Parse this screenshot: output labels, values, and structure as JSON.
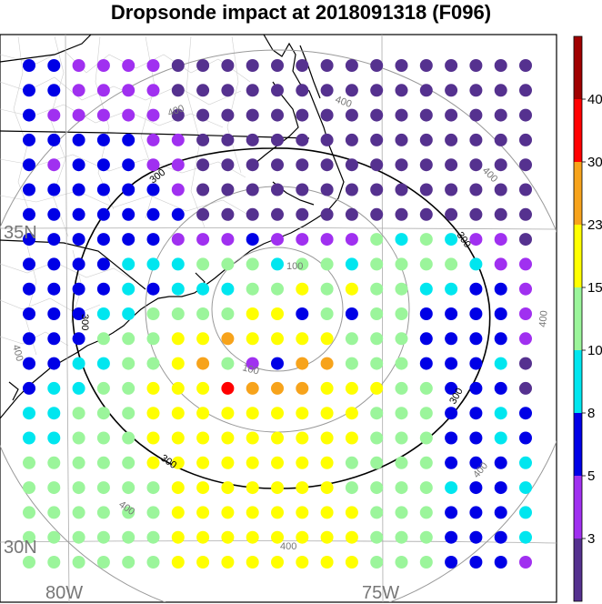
{
  "title": "Dropsonde impact at 2018091318 (F096)",
  "axes": {
    "lon_labels": [
      {
        "text": "80W",
        "lon": -80
      },
      {
        "text": "75W",
        "lon": -75
      }
    ],
    "lat_labels": [
      {
        "text": "35N",
        "lat": 35
      },
      {
        "text": "30N",
        "lat": 30
      }
    ]
  },
  "colorbar": {
    "colors": [
      "#55318f",
      "#a030f0",
      "#0000e6",
      "#00e6ef",
      "#9bf59b",
      "#ffff00",
      "#f7a31b",
      "#ff0000",
      "#a00000"
    ],
    "labels": [
      "3",
      "5",
      "8",
      "10",
      "15",
      "23",
      "30",
      "40"
    ]
  },
  "range_rings": {
    "black": {
      "value": "300",
      "labels": [
        "300",
        "300",
        "300",
        "300"
      ]
    },
    "gray": [
      {
        "value": "100",
        "labels": [
          "100",
          "100"
        ]
      },
      {
        "value": "400",
        "labels": [
          "400",
          "400",
          "400",
          "400",
          "400",
          "400",
          "400",
          "400"
        ]
      }
    ]
  },
  "chart_data": {
    "type": "map",
    "title": "Dropsonde impact at 2018091318 (F096)",
    "grid": {
      "lon_start": -81.9,
      "lon_step": 0.5,
      "cols": 21,
      "lat_start": 37.8,
      "lat_step": -0.5,
      "rows": 21
    },
    "category_values": [
      "<3",
      "3-5",
      "5-8",
      "8-10",
      "10-15",
      "15-23",
      "23-30",
      "30-40",
      ">40"
    ],
    "rows": [
      "221111000000000000000",
      "221111000000000000000",
      "211111000000000000000",
      "222221100000000000000",
      "212221100000000000000",
      "222222100000000000000",
      "222222200000000000000",
      "222222111211114343110",
      "222233344434434444311",
      "222232333445454433221",
      "222334444552424422221",
      "222444556555544422221",
      "223344564126644422230",
      "233445557666555442220",
      "334445555555554442232",
      "334445555555554442232",
      "444445555555544442223",
      "444444555555544443223",
      "444444555555554442223",
      "444444555555554442223",
      "444444555555554442221"
    ]
  }
}
